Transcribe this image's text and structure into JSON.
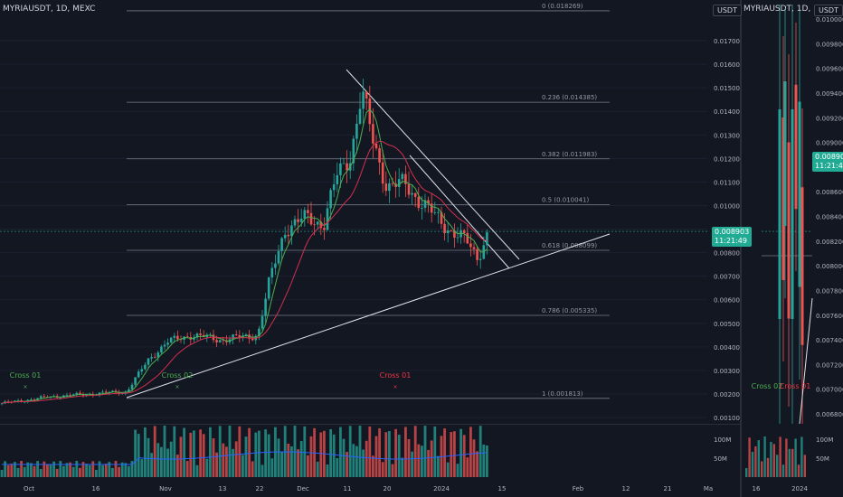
{
  "chart_data": [
    {
      "type": "candlestick",
      "symbol": "MYRIAUSDT, 1D, MEXC",
      "currency_badge": "USDT",
      "last_price": "0.008903",
      "countdown": "11:21:49",
      "y_ticks": [
        "0.017000",
        "0.016000",
        "0.015000",
        "0.014000",
        "0.013000",
        "0.012000",
        "0.011000",
        "0.010000",
        "0.009000",
        "0.008000",
        "0.007000",
        "0.006000",
        "0.005000",
        "0.004000",
        "0.003000",
        "0.002000",
        "0.001000"
      ],
      "volume_ticks": [
        "100M",
        "50M"
      ],
      "x_ticks": [
        "Oct",
        "16",
        "Nov",
        "13",
        "22",
        "Dec",
        "11",
        "20",
        "2024",
        "15",
        "Feb",
        "12",
        "21",
        "Ma"
      ],
      "fib_levels": [
        {
          "label": "0 (0.018269)",
          "value": 0.018269
        },
        {
          "label": "0.236 (0.014385)",
          "value": 0.014385
        },
        {
          "label": "0.382 (0.011983)",
          "value": 0.011983
        },
        {
          "label": "0.5 (0.010041)",
          "value": 0.010041
        },
        {
          "label": "0.618 (0.008099)",
          "value": 0.008099
        },
        {
          "label": "0.786 (0.005335)",
          "value": 0.005335
        },
        {
          "label": "1 (0.001813)",
          "value": 0.001813
        }
      ],
      "signals": [
        {
          "label": "Cross 01",
          "color": "#4caf50"
        },
        {
          "label": "Cross 02",
          "color": "#4caf50"
        },
        {
          "label": "Cross 01",
          "color": "#f23645"
        }
      ],
      "colors": {
        "up": "#26a69a",
        "down": "#ef5350",
        "ma_fast": "#4caf50",
        "ma_slow": "#d32f4f",
        "volume_ma": "#2962ff"
      }
    },
    {
      "type": "candlestick",
      "symbol": "MYRIAUSDT, 1D, MEXC",
      "currency_badge": "USDT",
      "last_price": "0.008903",
      "countdown": "11:21:49",
      "y_ticks": [
        "0.010000",
        "0.009800",
        "0.009600",
        "0.009400",
        "0.009200",
        "0.009000",
        "0.008800",
        "0.008600",
        "0.008400",
        "0.008200",
        "0.008000",
        "0.007800",
        "0.007600",
        "0.007400",
        "0.007200",
        "0.007000",
        "0.006800"
      ],
      "volume_ticks": [
        "100M",
        "50M"
      ],
      "x_ticks": [
        "16",
        "2024"
      ],
      "signals": [
        {
          "label": "Cross 02",
          "color": "#4caf50"
        },
        {
          "label": "Cross 01",
          "color": "#f23645"
        }
      ]
    }
  ]
}
